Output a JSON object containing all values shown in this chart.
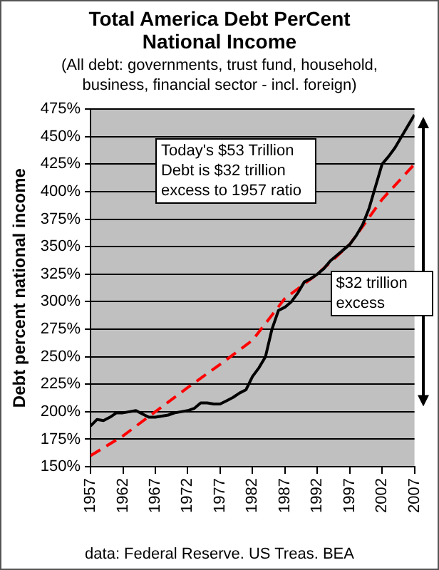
{
  "chart_data": {
    "type": "line",
    "title": "Total America Debt PerCent National Income",
    "subtitle": "(All debt: governments, trust fund, household, business, financial sector - incl. foreign)",
    "ylabel": "Debt percent national income",
    "annotations": [
      "Today's $53 Trillion Debt is $32 trillion excess to 1957 ratio",
      "$32 trillion excess",
      "data: Federal Reserve. US Treas. BEA"
    ],
    "xlim": [
      1957,
      2007
    ],
    "xticks": [
      1957,
      1962,
      1967,
      1972,
      1977,
      1982,
      1987,
      1992,
      1997,
      2002,
      2007
    ],
    "ylim": [
      150,
      475
    ],
    "yticks": [
      {
        "value": 150,
        "label": "150%"
      },
      {
        "value": 175,
        "label": "175%"
      },
      {
        "value": 200,
        "label": "200%"
      },
      {
        "value": 225,
        "label": "225%"
      },
      {
        "value": 250,
        "label": "250%"
      },
      {
        "value": 275,
        "label": "275%"
      },
      {
        "value": 300,
        "label": "300%"
      },
      {
        "value": 325,
        "label": "325%"
      },
      {
        "value": 350,
        "label": "350%"
      },
      {
        "value": 375,
        "label": "375%"
      },
      {
        "value": 400,
        "label": "400%"
      },
      {
        "value": 425,
        "label": "425%"
      },
      {
        "value": 450,
        "label": "450%"
      },
      {
        "value": 475,
        "label": "475%"
      }
    ],
    "grid": "y",
    "legend": false,
    "marker": "none",
    "series": [
      {
        "color": "#000000",
        "line_style": "solid",
        "x": [
          1957,
          1958,
          1959,
          1960,
          1961,
          1962,
          1963,
          1964,
          1965,
          1966,
          1967,
          1968,
          1969,
          1970,
          1971,
          1972,
          1973,
          1974,
          1975,
          1976,
          1977,
          1978,
          1979,
          1980,
          1981,
          1982,
          1983,
          1984,
          1985,
          1986,
          1987,
          1988,
          1989,
          1990,
          1991,
          1992,
          1993,
          1994,
          1995,
          1996,
          1997,
          1998,
          1999,
          2000,
          2001,
          2002,
          2003,
          2004,
          2005,
          2006,
          2007
        ],
        "values": [
          187,
          193,
          192,
          195,
          199,
          199,
          200,
          201,
          198,
          195,
          195,
          196,
          197,
          199,
          200,
          201,
          203,
          208,
          208,
          207,
          207,
          210,
          213,
          217,
          220,
          232,
          240,
          250,
          275,
          292,
          295,
          300,
          308,
          318,
          321,
          325,
          330,
          337,
          342,
          347,
          352,
          360,
          370,
          385,
          405,
          425,
          432,
          440,
          450,
          460,
          470
        ]
      },
      {
        "type": "line",
        "color": "#ff0000",
        "line_style": "dashed",
        "x": [
          1957,
          1962,
          1967,
          1972,
          1977,
          1982,
          1987,
          1992,
          1997,
          2002,
          2007
        ],
        "values": [
          160,
          178,
          200,
          222,
          243,
          265,
          303,
          325,
          352,
          393,
          425
        ]
      }
    ]
  }
}
